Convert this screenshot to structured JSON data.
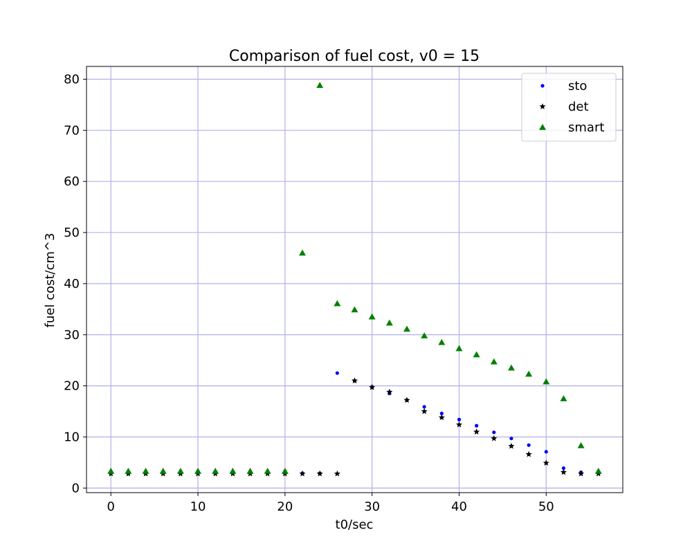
{
  "chart_data": {
    "type": "scatter",
    "title": "Comparison of fuel cost, v0 = 15",
    "xlabel": "t0/sec",
    "ylabel": "fuel cost/cm^3",
    "xlim": [
      -2.8,
      58.8
    ],
    "ylim": [
      -0.9,
      82.5
    ],
    "xticks": [
      0,
      10,
      20,
      30,
      40,
      50
    ],
    "yticks": [
      0,
      10,
      20,
      30,
      40,
      50,
      60,
      70,
      80
    ],
    "grid": true,
    "grid_color": "#b0b0e8",
    "legend_position": "top-right",
    "series": [
      {
        "name": "sto",
        "marker": "dot",
        "color": "#0000ff",
        "points": [
          [
            0,
            2.9
          ],
          [
            2,
            2.9
          ],
          [
            4,
            2.9
          ],
          [
            6,
            2.9
          ],
          [
            8,
            2.9
          ],
          [
            10,
            2.9
          ],
          [
            12,
            2.9
          ],
          [
            14,
            2.9
          ],
          [
            16,
            2.9
          ],
          [
            18,
            2.9
          ],
          [
            20,
            2.9
          ],
          [
            22,
            2.9
          ],
          [
            24,
            2.9
          ],
          [
            26,
            22.5
          ],
          [
            28,
            21.0
          ],
          [
            30,
            19.8
          ],
          [
            32,
            18.5
          ],
          [
            34,
            17.2
          ],
          [
            36,
            15.9
          ],
          [
            38,
            14.6
          ],
          [
            40,
            13.4
          ],
          [
            42,
            12.2
          ],
          [
            44,
            10.9
          ],
          [
            46,
            9.7
          ],
          [
            48,
            8.4
          ],
          [
            50,
            7.1
          ],
          [
            52,
            3.9
          ],
          [
            54,
            3.1
          ],
          [
            56,
            2.9
          ]
        ]
      },
      {
        "name": "det",
        "marker": "star",
        "color": "#000000",
        "points": [
          [
            0,
            2.8
          ],
          [
            2,
            2.8
          ],
          [
            4,
            2.8
          ],
          [
            6,
            2.8
          ],
          [
            8,
            2.8
          ],
          [
            10,
            2.8
          ],
          [
            12,
            2.8
          ],
          [
            14,
            2.8
          ],
          [
            16,
            2.8
          ],
          [
            18,
            2.8
          ],
          [
            20,
            2.8
          ],
          [
            22,
            2.8
          ],
          [
            24,
            2.8
          ],
          [
            26,
            2.8
          ],
          [
            28,
            21.0
          ],
          [
            30,
            19.7
          ],
          [
            32,
            18.8
          ],
          [
            34,
            17.2
          ],
          [
            36,
            15.0
          ],
          [
            38,
            13.8
          ],
          [
            40,
            12.4
          ],
          [
            42,
            11.0
          ],
          [
            44,
            9.7
          ],
          [
            46,
            8.2
          ],
          [
            48,
            6.6
          ],
          [
            50,
            4.9
          ],
          [
            52,
            3.1
          ],
          [
            54,
            2.8
          ],
          [
            56,
            2.8
          ]
        ]
      },
      {
        "name": "smart",
        "marker": "triangle",
        "color": "#008000",
        "points": [
          [
            0,
            3.3
          ],
          [
            2,
            3.3
          ],
          [
            4,
            3.3
          ],
          [
            6,
            3.3
          ],
          [
            8,
            3.3
          ],
          [
            10,
            3.3
          ],
          [
            12,
            3.3
          ],
          [
            14,
            3.3
          ],
          [
            16,
            3.3
          ],
          [
            18,
            3.3
          ],
          [
            20,
            3.3
          ],
          [
            22,
            46.0
          ],
          [
            24,
            78.8
          ],
          [
            26,
            36.1
          ],
          [
            28,
            34.9
          ],
          [
            30,
            33.5
          ],
          [
            32,
            32.3
          ],
          [
            34,
            31.1
          ],
          [
            36,
            29.8
          ],
          [
            38,
            28.5
          ],
          [
            40,
            27.3
          ],
          [
            42,
            26.1
          ],
          [
            44,
            24.7
          ],
          [
            46,
            23.5
          ],
          [
            48,
            22.3
          ],
          [
            50,
            20.8
          ],
          [
            52,
            17.5
          ],
          [
            54,
            8.3
          ],
          [
            56,
            3.3
          ]
        ]
      }
    ]
  }
}
